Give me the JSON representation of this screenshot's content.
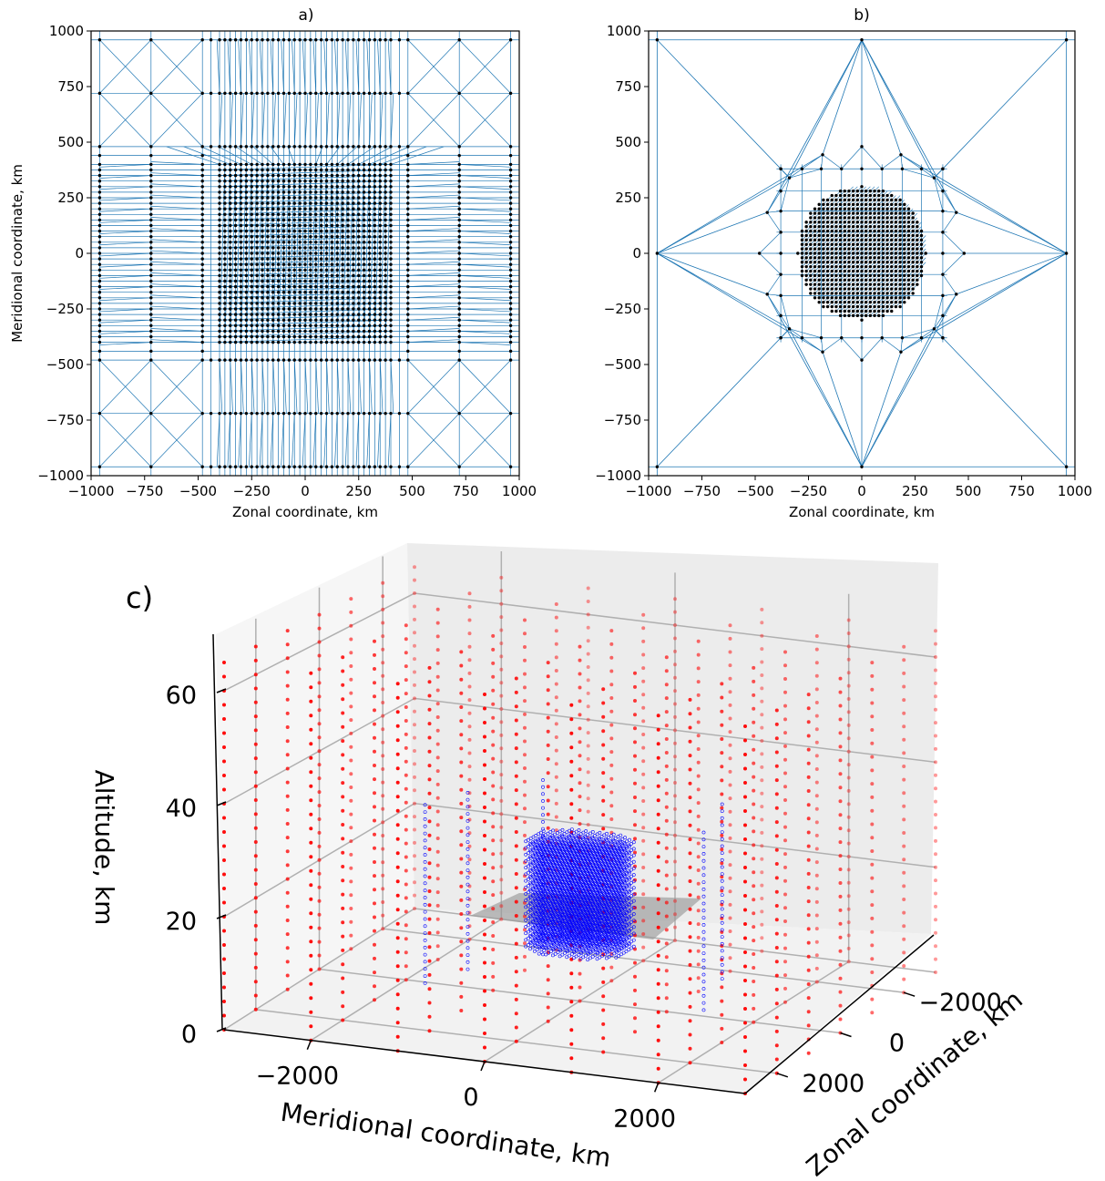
{
  "chart_data": [
    {
      "type": "scatter",
      "title": "a)",
      "subtype": "triangular mesh with nodes",
      "xlabel": "Zonal coordinate, km",
      "ylabel": "Meridional coordinate, km",
      "xlim": [
        -1000,
        1000
      ],
      "ylim": [
        -1000,
        1000
      ],
      "xticks": [
        "−1000",
        "−750",
        "−500",
        "−250",
        "0",
        "250",
        "500",
        "750",
        "1000"
      ],
      "yticks": [
        "−1000",
        "−750",
        "−500",
        "−250",
        "0",
        "250",
        "500",
        "750",
        "1000"
      ],
      "mesh_description": "rectangular nested refinement: fine nodes every 25 km in |x|,|y|<=400 km, coarse corner nodes at ±960, ±720, ±480",
      "coarse_levels": [
        -960,
        -720,
        -480,
        480,
        720,
        960
      ],
      "fine_range": [
        -400,
        400
      ],
      "fine_step": 25,
      "edge_color": "#1f77b4",
      "node_color": "#000000"
    },
    {
      "type": "scatter",
      "title": "b)",
      "subtype": "triangular mesh with nodes",
      "xlabel": "Zonal coordinate, km",
      "ylabel": "",
      "xlim": [
        -1000,
        1000
      ],
      "ylim": [
        -1000,
        1000
      ],
      "xticks": [
        "−1000",
        "−750",
        "−500",
        "−250",
        "0",
        "250",
        "500",
        "750",
        "1000"
      ],
      "yticks": [
        "−1000",
        "−750",
        "−500",
        "−250",
        "0",
        "250",
        "500",
        "750",
        "1000"
      ],
      "mesh_description": "circular refinement: dense nodes in radius ~300 km, rings of nodes at radius ~400 and ~500 km, eight outer nodes at the domain boundary",
      "outer_nodes": [
        [
          -960,
          -960
        ],
        [
          0,
          -960
        ],
        [
          960,
          -960
        ],
        [
          -960,
          0
        ],
        [
          960,
          0
        ],
        [
          -960,
          960
        ],
        [
          0,
          960
        ],
        [
          960,
          960
        ]
      ],
      "edge_color": "#1f77b4",
      "node_color": "#000000"
    },
    {
      "type": "scatter3d",
      "title": "c)",
      "xlabel": "Meridional coordinate, km",
      "ylabel": "Zonal coordinate, km",
      "zlabel": "Altitude, km",
      "xticks": [
        "−2000",
        "0",
        "2000"
      ],
      "yticks": [
        "−2000",
        "0",
        "2000"
      ],
      "zticks": [
        "0",
        "20",
        "40",
        "60"
      ],
      "xlim": [
        -3000,
        3000
      ],
      "ylim": [
        -3000,
        3000
      ],
      "zlim": [
        0,
        70
      ],
      "series": [
        {
          "color": "#ff0000",
          "marker": "filled dot",
          "description": "coarse grid columns, 1000 km spacing, z from 0 to 65 km"
        },
        {
          "color": "#0000ff",
          "marker": "open circle",
          "description": "dense columns of nodes within ~600 km of the origin, z from ~10 to ~30 km"
        }
      ],
      "shaded_region": {
        "x": [
          -1000,
          1000
        ],
        "y": [
          -1000,
          1000
        ],
        "z": 20,
        "color": "#999999"
      }
    }
  ]
}
